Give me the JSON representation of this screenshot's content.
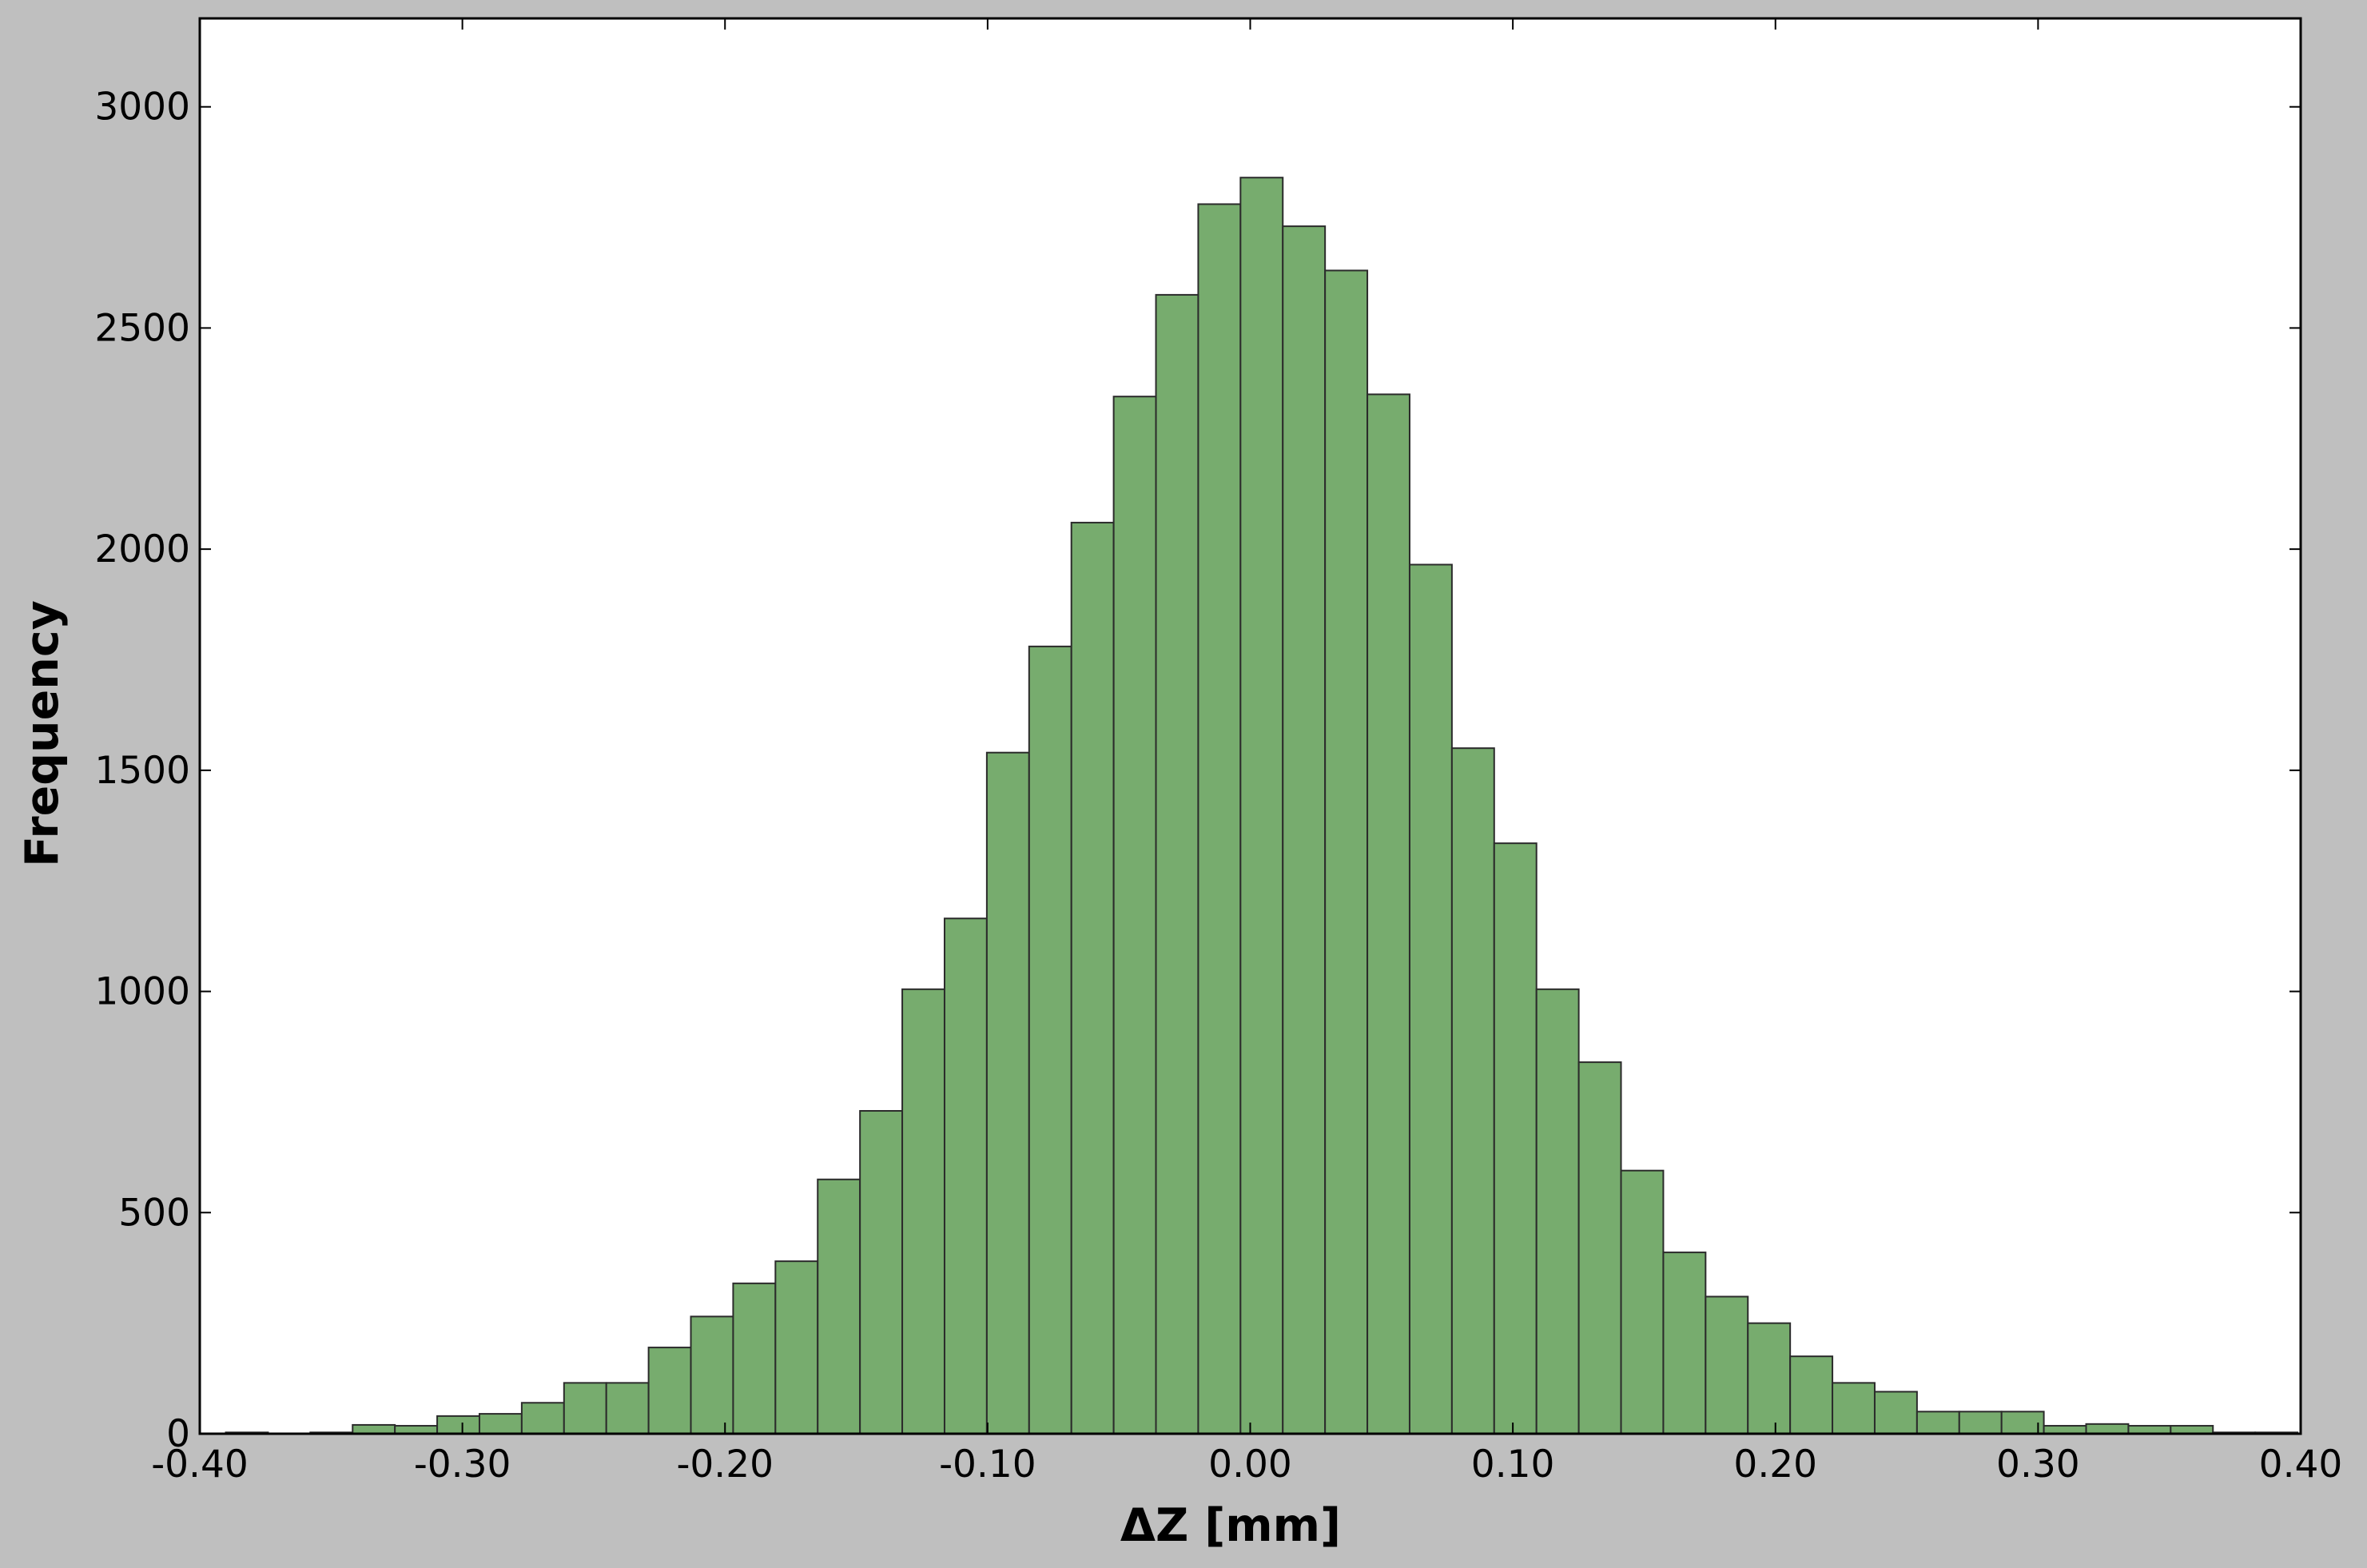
{
  "chart_data": {
    "type": "bar",
    "title": "",
    "xlabel": "ΔZ [mm]",
    "ylabel": "Frequency",
    "xlim": [
      -0.4,
      0.4
    ],
    "ylim": [
      0,
      3200
    ],
    "grid": false,
    "legend": "none",
    "bar_color": "#77ac6e",
    "bar_edge_color": "#2b2b2b",
    "x_ticks": [
      -0.4,
      -0.3,
      -0.2,
      -0.1,
      0.0,
      0.1,
      0.2,
      0.3,
      0.4
    ],
    "x_tick_labels": [
      "-0.40",
      "-0.30",
      "-0.20",
      "-0.10",
      "0.00",
      "0.10",
      "0.20",
      "0.30",
      "0.40"
    ],
    "y_ticks": [
      0,
      500,
      1000,
      1500,
      2000,
      2500,
      3000
    ],
    "y_tick_labels": [
      "0",
      "500",
      "1000",
      "1500",
      "2000",
      "2500",
      "3000"
    ],
    "bin_edges": [
      -0.3901,
      -0.374,
      -0.3579,
      -0.3418,
      -0.3257,
      -0.3096,
      -0.2935,
      -0.2774,
      -0.2613,
      -0.2452,
      -0.2291,
      -0.213,
      -0.1969,
      -0.1808,
      -0.1647,
      -0.1486,
      -0.1325,
      -0.1164,
      -0.1003,
      -0.0842,
      -0.0681,
      -0.052,
      -0.0359,
      -0.0198,
      -0.0037,
      0.0124,
      0.0285,
      0.0446,
      0.0607,
      0.0768,
      0.0929,
      0.109,
      0.1251,
      0.1412,
      0.1573,
      0.1734,
      0.1895,
      0.2056,
      0.2217,
      0.2378,
      0.2539,
      0.27,
      0.2861,
      0.3022,
      0.3183,
      0.3344,
      0.3505,
      0.3666,
      0.3827,
      0.3988
    ],
    "values": [
      3,
      0,
      3,
      20,
      18,
      40,
      45,
      70,
      115,
      115,
      195,
      265,
      340,
      390,
      575,
      730,
      1005,
      1165,
      1540,
      1780,
      2060,
      2345,
      2575,
      2780,
      2840,
      2730,
      2630,
      2350,
      1965,
      1550,
      1335,
      1005,
      840,
      595,
      410,
      310,
      250,
      175,
      115,
      95,
      50,
      50,
      50,
      18,
      22,
      18,
      18,
      3,
      3
    ]
  }
}
